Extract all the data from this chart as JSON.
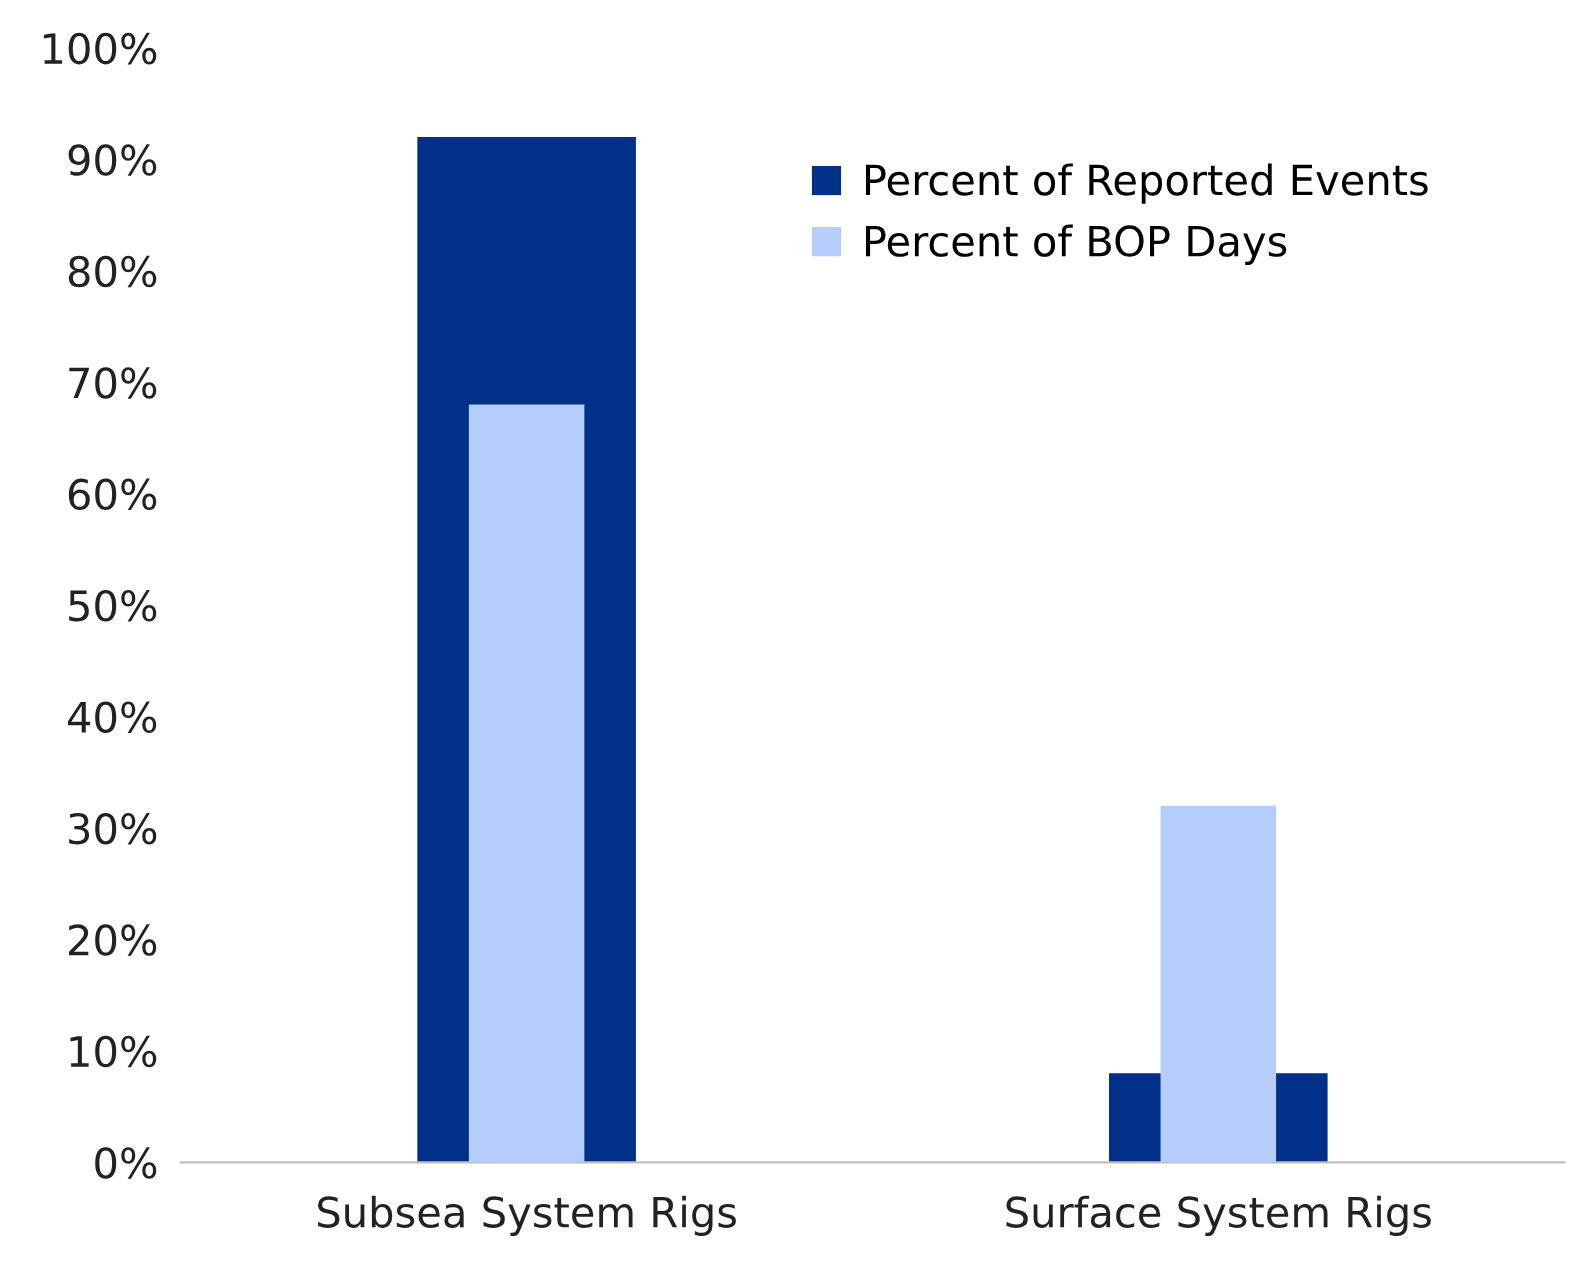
{
  "chart_data": {
    "type": "bar",
    "categories": [
      "Subsea System Rigs",
      "Surface System Rigs"
    ],
    "series": [
      {
        "name": "Percent of Reported Events",
        "color": "#003087",
        "values": [
          92,
          8
        ]
      },
      {
        "name": "Percent of BOP Days",
        "color": "#b4cdfa",
        "values": [
          68,
          32
        ]
      }
    ],
    "ylim": [
      0,
      100
    ],
    "yticks": [
      {
        "value": 0,
        "label": "0%"
      },
      {
        "value": 10,
        "label": "10%"
      },
      {
        "value": 20,
        "label": "20%"
      },
      {
        "value": 30,
        "label": "30%"
      },
      {
        "value": 40,
        "label": "40%"
      },
      {
        "value": 50,
        "label": "50%"
      },
      {
        "value": 60,
        "label": "60%"
      },
      {
        "value": 70,
        "label": "70%"
      },
      {
        "value": 80,
        "label": "80%"
      },
      {
        "value": 90,
        "label": "90%"
      },
      {
        "value": 100,
        "label": "100%"
      }
    ],
    "grid": false,
    "legend": "top right"
  }
}
